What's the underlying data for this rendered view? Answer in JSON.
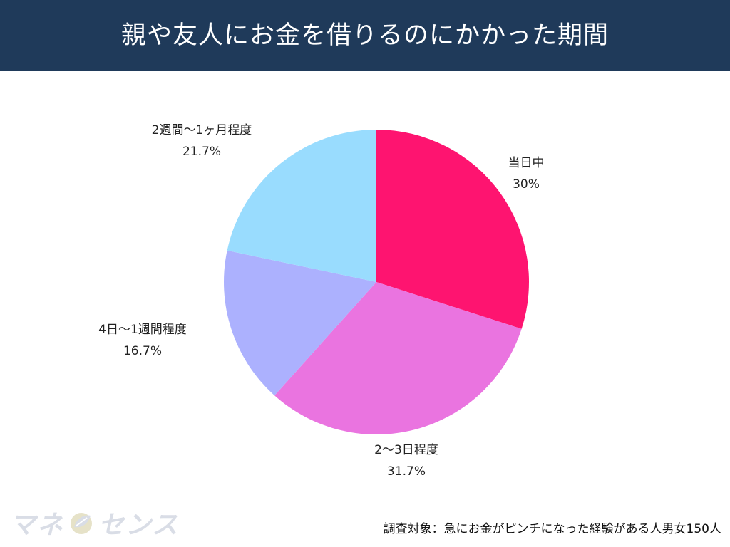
{
  "header": {
    "title": "親や友人にお金を借りるのにかかった期間"
  },
  "chart_data": {
    "type": "pie",
    "title": "親や友人にお金を借りるのにかかった期間",
    "start_angle_deg": 0,
    "direction": "clockwise",
    "slices": [
      {
        "label": "当日中",
        "pct_label": "30%",
        "value": 30.0,
        "color": "#fe1470"
      },
      {
        "label": "2〜3日程度",
        "pct_label": "31.7%",
        "value": 31.7,
        "color": "#ea74e0"
      },
      {
        "label": "4日〜1週間程度",
        "pct_label": "16.7%",
        "value": 16.7,
        "color": "#acb1fe"
      },
      {
        "label": "2週間〜1ヶ月程度",
        "pct_label": "21.7%",
        "value": 21.7,
        "color": "#99dcfe"
      }
    ]
  },
  "logo": {
    "part1": "マネ",
    "part2": "センス",
    "mark_icon": "leaf-coin-icon",
    "color": "#d9dde6"
  },
  "footnote": "調査対象：急にお金がピンチになった経験がある人男女150人"
}
